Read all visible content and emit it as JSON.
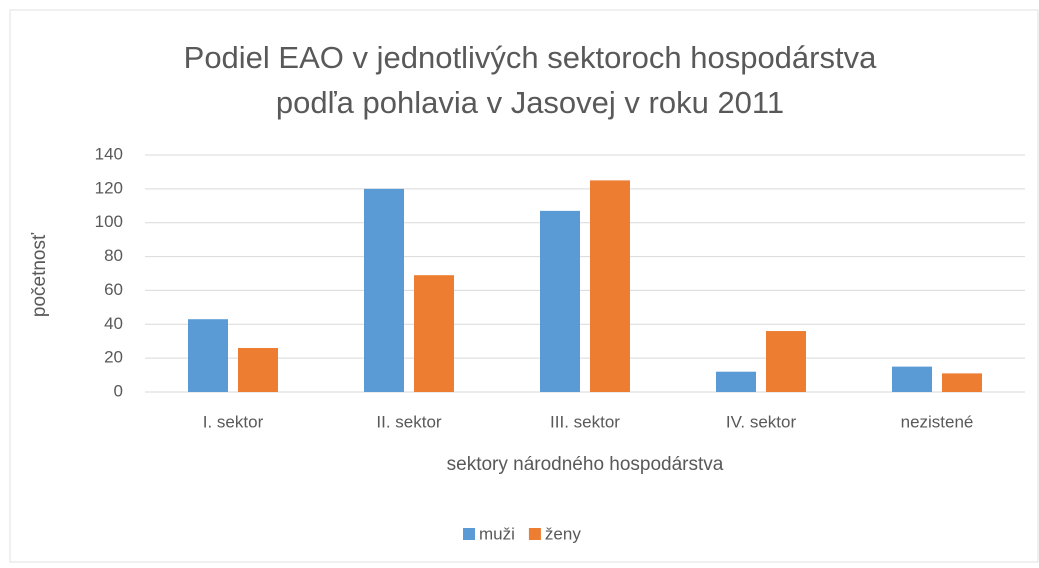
{
  "chart_data": {
    "type": "bar",
    "title": [
      "Podiel EAO v jednotlivých sektoroch hospodárstva",
      "podľa pohlavia v Jasovej v roku 2011"
    ],
    "xlabel": "sektory národného hospodárstva",
    "ylabel": "početnosť",
    "categories": [
      "I. sektor",
      "II. sektor",
      "III. sektor",
      "IV. sektor",
      "nezistené"
    ],
    "series": [
      {
        "name": "muži",
        "color": "#5b9bd5",
        "values": [
          43,
          120,
          107,
          12,
          15
        ]
      },
      {
        "name": "ženy",
        "color": "#ed7d31",
        "values": [
          26,
          69,
          125,
          36,
          11
        ]
      }
    ],
    "ylim": [
      0,
      140
    ],
    "yticks": [
      0,
      20,
      40,
      60,
      80,
      100,
      120,
      140
    ],
    "grid": true,
    "legend": "bottom"
  }
}
